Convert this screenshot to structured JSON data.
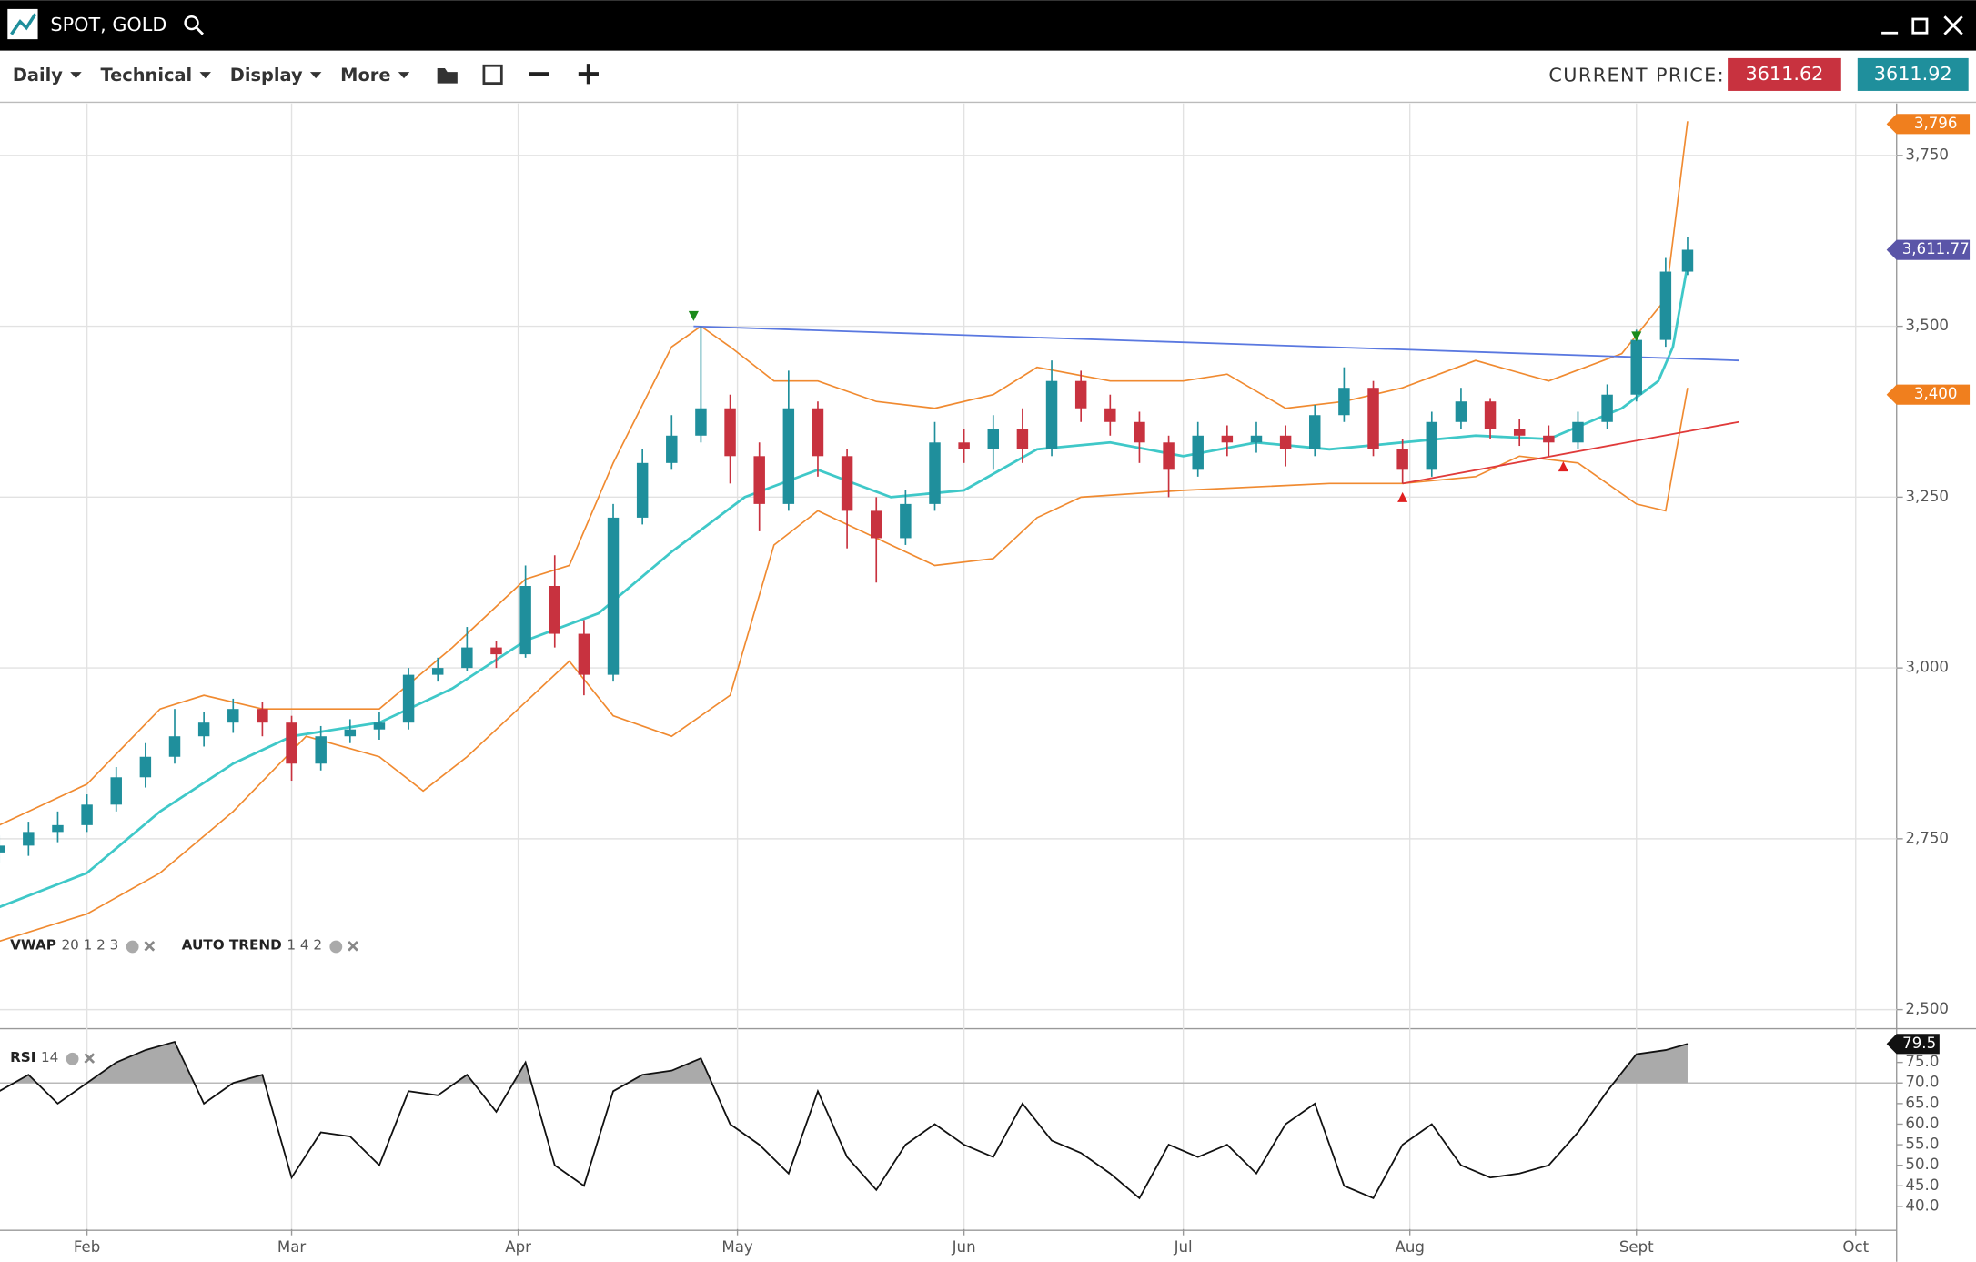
{
  "header": {
    "title": "SPOT, GOLD"
  },
  "toolbar": {
    "menus": [
      "Daily",
      "Technical",
      "Display",
      "More"
    ],
    "current_price_label": "CURRENT PRICE:",
    "bid": "3611.62",
    "ask": "3611.92"
  },
  "chart_data": [
    {
      "type": "candlestick",
      "x": [
        -12,
        -8,
        -4,
        0,
        4,
        8,
        12,
        16,
        20,
        24,
        28,
        32,
        36,
        40,
        44,
        48,
        52,
        56,
        60,
        64,
        68,
        72,
        76,
        80,
        84,
        88,
        92,
        96,
        100,
        104,
        108,
        112,
        116,
        120,
        124,
        128,
        132,
        136,
        140,
        144,
        148,
        152,
        156,
        160,
        164,
        168,
        172,
        176,
        180,
        184,
        188,
        192,
        196,
        200,
        204,
        208,
        212,
        216,
        219
      ],
      "open": [
        2730,
        2740,
        2760,
        2770,
        2800,
        2840,
        2870,
        2900,
        2920,
        2940,
        2920,
        2860,
        2900,
        2910,
        2920,
        2990,
        3000,
        3030,
        3020,
        3120,
        3050,
        2990,
        3220,
        3300,
        3340,
        3380,
        3310,
        3240,
        3380,
        3310,
        3230,
        3190,
        3240,
        3330,
        3320,
        3350,
        3320,
        3420,
        3380,
        3360,
        3330,
        3290,
        3340,
        3330,
        3340,
        3320,
        3370,
        3410,
        3320,
        3290,
        3360,
        3390,
        3350,
        3340,
        3330,
        3360,
        3400,
        3480,
        3580
      ],
      "high": [
        2755,
        2775,
        2790,
        2815,
        2855,
        2890,
        2940,
        2935,
        2955,
        2950,
        2930,
        2915,
        2925,
        2935,
        3000,
        3015,
        3060,
        3040,
        3150,
        3165,
        3070,
        3240,
        3320,
        3370,
        3500,
        3400,
        3330,
        3435,
        3390,
        3320,
        3250,
        3260,
        3360,
        3350,
        3370,
        3380,
        3450,
        3435,
        3400,
        3375,
        3340,
        3360,
        3355,
        3360,
        3355,
        3385,
        3440,
        3420,
        3335,
        3375,
        3410,
        3395,
        3365,
        3355,
        3375,
        3415,
        3495,
        3600,
        3630
      ],
      "low": [
        2715,
        2725,
        2745,
        2760,
        2790,
        2825,
        2860,
        2885,
        2905,
        2900,
        2835,
        2850,
        2890,
        2895,
        2910,
        2980,
        2995,
        3000,
        3015,
        3030,
        2960,
        2980,
        3210,
        3290,
        3330,
        3270,
        3200,
        3230,
        3280,
        3175,
        3125,
        3180,
        3230,
        3300,
        3290,
        3300,
        3310,
        3360,
        3340,
        3300,
        3250,
        3280,
        3310,
        3315,
        3295,
        3310,
        3360,
        3310,
        3270,
        3280,
        3350,
        3335,
        3325,
        3310,
        3320,
        3350,
        3390,
        3470,
        3575
      ],
      "close": [
        2740,
        2760,
        2770,
        2800,
        2840,
        2870,
        2900,
        2920,
        2940,
        2920,
        2860,
        2900,
        2910,
        2920,
        2990,
        3000,
        3030,
        3020,
        3120,
        3050,
        2990,
        3220,
        3300,
        3340,
        3380,
        3310,
        3240,
        3380,
        3310,
        3230,
        3190,
        3240,
        3330,
        3320,
        3350,
        3320,
        3420,
        3380,
        3360,
        3330,
        3290,
        3340,
        3330,
        3340,
        3320,
        3370,
        3410,
        3320,
        3290,
        3360,
        3390,
        3350,
        3340,
        3330,
        3360,
        3400,
        3480,
        3580,
        3612
      ],
      "up_color": "#1f8f9c",
      "down_color": "#c8323f",
      "xlim": [
        -11.9,
        247.6
      ],
      "ylim": [
        2474,
        3826
      ],
      "yticks": [
        {
          "value": 2500,
          "label": "2,500"
        },
        {
          "value": 2750,
          "label": "2,750"
        },
        {
          "value": 3000,
          "label": "3,000"
        },
        {
          "value": 3250,
          "label": "3,250"
        },
        {
          "value": 3500,
          "label": "3,500"
        },
        {
          "value": 3750,
          "label": "3,750"
        }
      ],
      "lines": [
        {
          "color": "#3fc8c8",
          "x": [
            -12,
            0,
            10,
            20,
            28,
            40,
            50,
            60,
            70,
            80,
            90,
            100,
            110,
            120,
            130,
            140,
            150,
            160,
            170,
            180,
            190,
            200,
            210,
            215,
            217,
            219
          ],
          "values": [
            2650,
            2700,
            2790,
            2860,
            2900,
            2920,
            2970,
            3040,
            3080,
            3170,
            3250,
            3290,
            3250,
            3260,
            3320,
            3330,
            3310,
            3330,
            3320,
            3330,
            3340,
            3335,
            3380,
            3420,
            3470,
            3590
          ]
        },
        {
          "color": "#f08a30",
          "x": [
            -12,
            0,
            10,
            16,
            24,
            40,
            50,
            60,
            66,
            72,
            80,
            84,
            88,
            94,
            100,
            108,
            116,
            124,
            130,
            140,
            150,
            156,
            164,
            172,
            180,
            190,
            200,
            210,
            216,
            219
          ],
          "values": [
            2770,
            2830,
            2940,
            2960,
            2940,
            2940,
            3030,
            3130,
            3150,
            3300,
            3470,
            3500,
            3470,
            3420,
            3420,
            3390,
            3380,
            3400,
            3440,
            3420,
            3420,
            3430,
            3380,
            3390,
            3410,
            3450,
            3420,
            3460,
            3540,
            3800
          ]
        },
        {
          "color": "#f08a30",
          "x": [
            -12,
            0,
            10,
            20,
            30,
            40,
            46,
            52,
            60,
            66,
            72,
            80,
            88,
            94,
            100,
            106,
            116,
            124,
            130,
            136,
            150,
            170,
            180,
            190,
            196,
            204,
            212,
            216,
            219
          ],
          "values": [
            2600,
            2640,
            2700,
            2790,
            2900,
            2870,
            2820,
            2870,
            2950,
            3010,
            2930,
            2900,
            2960,
            3180,
            3230,
            3200,
            3150,
            3160,
            3220,
            3250,
            3260,
            3270,
            3270,
            3280,
            3310,
            3300,
            3240,
            3230,
            3410
          ]
        }
      ],
      "trendlines": [
        {
          "color": "#5a78e0",
          "x": [
            83,
            226
          ],
          "values": [
            3500,
            3450
          ]
        },
        {
          "color": "#e03a3a",
          "x": [
            180,
            226
          ],
          "values": [
            3270,
            3360
          ]
        }
      ],
      "signals": [
        {
          "x": 83,
          "value": 3515,
          "direction": "down",
          "color": "#1a8a1a"
        },
        {
          "x": 212,
          "value": 3485,
          "direction": "down",
          "color": "#1a8a1a"
        },
        {
          "x": 180,
          "value": 3250,
          "direction": "up",
          "color": "#e02020"
        },
        {
          "x": 202,
          "value": 3295,
          "direction": "up",
          "color": "#e02020"
        }
      ],
      "price_tags": [
        {
          "value": 3796,
          "label": "3,796",
          "color": "#f07f1e"
        },
        {
          "value": 3611.77,
          "label": "3,611.77",
          "color": "#5a55a8"
        },
        {
          "value": 3400,
          "label": "3,400",
          "color": "#f07f1e"
        }
      ],
      "indicators": [
        {
          "name": "VWAP",
          "params": "20 1 2 3"
        },
        {
          "name": "AUTO TREND",
          "params": "1 4 2"
        }
      ]
    },
    {
      "type": "line",
      "name": "RSI",
      "params": "14",
      "color": "#111",
      "x": [
        -12,
        -8,
        -4,
        0,
        4,
        8,
        12,
        16,
        20,
        24,
        28,
        32,
        36,
        40,
        44,
        48,
        52,
        56,
        60,
        64,
        68,
        72,
        76,
        80,
        84,
        88,
        92,
        96,
        100,
        104,
        108,
        112,
        116,
        120,
        124,
        128,
        132,
        136,
        140,
        144,
        148,
        152,
        156,
        160,
        164,
        168,
        172,
        176,
        180,
        184,
        188,
        192,
        196,
        200,
        204,
        208,
        212,
        216,
        219
      ],
      "values": [
        68,
        72,
        65,
        70,
        75,
        78,
        80,
        65,
        70,
        72,
        47,
        58,
        57,
        50,
        68,
        67,
        72,
        63,
        75,
        50,
        45,
        68,
        72,
        73,
        76,
        60,
        55,
        48,
        68,
        52,
        44,
        55,
        60,
        55,
        52,
        65,
        56,
        53,
        48,
        42,
        55,
        52,
        55,
        48,
        60,
        65,
        45,
        42,
        55,
        60,
        50,
        47,
        48,
        50,
        58,
        68,
        77,
        78,
        79.5
      ],
      "threshold": 70,
      "fill_color": "#aaaaaa",
      "xlim": [
        -11.9,
        247.6
      ],
      "ylim": [
        34.5,
        82.9
      ],
      "yticks": [
        {
          "value": 40,
          "label": "40.0"
        },
        {
          "value": 45,
          "label": "45.0"
        },
        {
          "value": 50,
          "label": "50.0"
        },
        {
          "value": 55,
          "label": "55.0"
        },
        {
          "value": 60,
          "label": "60.0"
        },
        {
          "value": 65,
          "label": "65.0"
        },
        {
          "value": 70,
          "label": "70.0"
        },
        {
          "value": 75,
          "label": "75.0"
        }
      ],
      "xticks": [
        {
          "value": 0,
          "label": "Feb"
        },
        {
          "value": 28,
          "label": "Mar"
        },
        {
          "value": 59,
          "label": "Apr"
        },
        {
          "value": 89,
          "label": "May"
        },
        {
          "value": 120,
          "label": "Jun"
        },
        {
          "value": 150,
          "label": "Jul"
        },
        {
          "value": 181,
          "label": "Aug"
        },
        {
          "value": 212,
          "label": "Sept"
        },
        {
          "value": 242,
          "label": "Oct"
        }
      ]
    }
  ]
}
